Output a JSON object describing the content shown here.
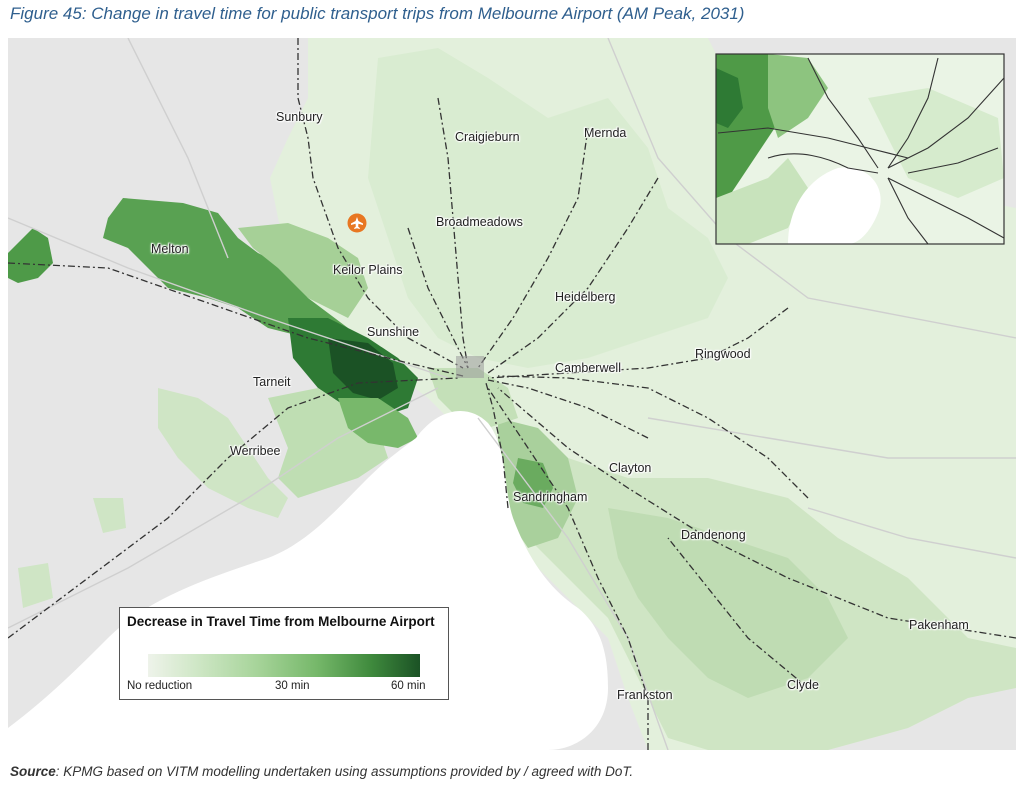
{
  "figure": {
    "title": "Figure 45: Change in travel time for public transport trips from Melbourne Airport (AM Peak, 2031)"
  },
  "map": {
    "icon": "airport-icon",
    "places": {
      "sunbury": "Sunbury",
      "craigieburn": "Craigieburn",
      "mernda": "Mernda",
      "broadmeadows": "Broadmeadows",
      "melton": "Melton",
      "keilor_plains": "Keilor Plains",
      "heidelberg": "Heidelberg",
      "sunshine": "Sunshine",
      "ringwood": "Ringwood",
      "tarneit": "Tarneit",
      "camberwell": "Camberwell",
      "werribee": "Werribee",
      "clayton": "Clayton",
      "sandringham": "Sandringham",
      "dandenong": "Dandenong",
      "pakenham": "Pakenham",
      "clyde": "Clyde",
      "frankston": "Frankston"
    },
    "colors": {
      "land": "#e6e6e6",
      "water": "#ffffff",
      "airport": "#e87722",
      "green_max": "#1b5225"
    }
  },
  "legend": {
    "title": "Decrease in Travel Time from Melbourne Airport",
    "ticks": {
      "min": "No reduction",
      "mid": "30 min",
      "max": "60 min"
    }
  },
  "source": {
    "label": "Source",
    "text": ": KPMG based on VITM modelling undertaken using assumptions provided by / agreed with DoT."
  }
}
